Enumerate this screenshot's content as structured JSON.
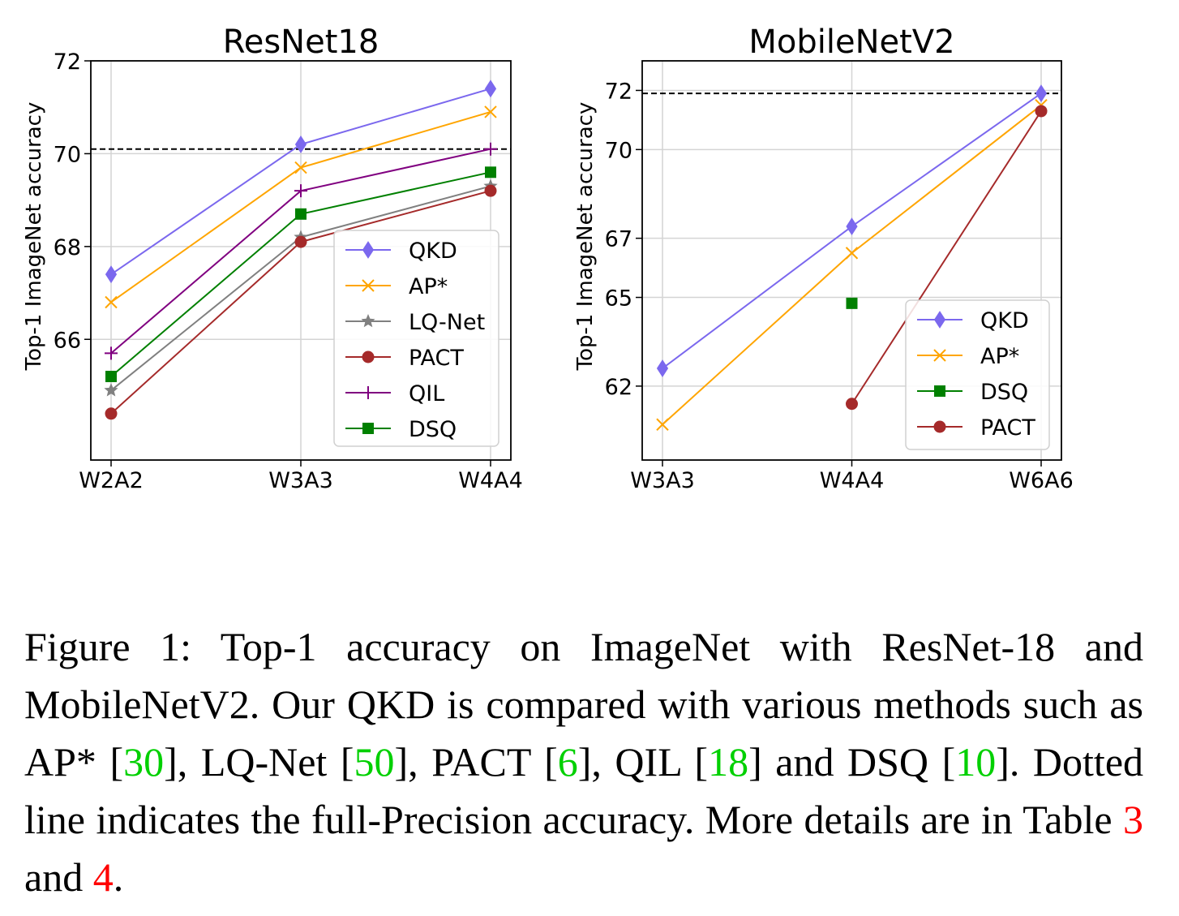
{
  "chart_data": [
    {
      "type": "line",
      "title": "ResNet18",
      "xlabel": "",
      "ylabel": "Top-1 ImageNet accuracy",
      "categories": [
        "W2A2",
        "W3A3",
        "W4A4"
      ],
      "yticks": [
        66,
        68,
        70,
        72
      ],
      "ylim": [
        63.4,
        72
      ],
      "grid": true,
      "legend_position": "lower-right",
      "full_precision_line": 70.1,
      "series": [
        {
          "name": "QKD",
          "color": "#7b68ee",
          "marker": "diamond",
          "values": [
            67.4,
            70.2,
            71.4
          ]
        },
        {
          "name": "AP*",
          "color": "#ffa500",
          "marker": "x",
          "values": [
            66.8,
            69.7,
            70.9
          ]
        },
        {
          "name": "LQ-Net",
          "color": "#808080",
          "marker": "star",
          "values": [
            64.9,
            68.2,
            69.3
          ]
        },
        {
          "name": "PACT",
          "color": "#a52a2a",
          "marker": "circle",
          "values": [
            64.4,
            68.1,
            69.2
          ]
        },
        {
          "name": "QIL",
          "color": "#800080",
          "marker": "plus",
          "values": [
            65.7,
            69.2,
            70.1
          ]
        },
        {
          "name": "DSQ",
          "color": "#008000",
          "marker": "square",
          "values": [
            65.2,
            68.7,
            69.6
          ]
        }
      ]
    },
    {
      "type": "line",
      "title": "MobileNetV2",
      "xlabel": "",
      "ylabel": "Top-1 ImageNet accuracy",
      "categories": [
        "W3A3",
        "W4A4",
        "W6A6"
      ],
      "yticks": [
        62,
        65,
        67,
        70,
        72
      ],
      "ylim": [
        59.5,
        73
      ],
      "grid": true,
      "legend_position": "lower-right",
      "full_precision_line": 71.9,
      "series": [
        {
          "name": "QKD",
          "color": "#7b68ee",
          "marker": "diamond",
          "values": [
            62.6,
            67.4,
            71.9
          ]
        },
        {
          "name": "AP*",
          "color": "#ffa500",
          "marker": "x",
          "values": [
            60.7,
            66.5,
            71.5
          ]
        },
        {
          "name": "DSQ",
          "color": "#008000",
          "marker": "square",
          "values": [
            null,
            64.8,
            null
          ]
        },
        {
          "name": "PACT",
          "color": "#a52a2a",
          "marker": "circle",
          "values": [
            null,
            61.4,
            71.3
          ]
        }
      ]
    }
  ],
  "caption": {
    "t1": "Figure 1: Top-1 accuracy on ImageNet with ResNet-18 and MobileNetV2. Our QKD is compared with various methods such as AP* [",
    "r1": "30",
    "t2": "], LQ-Net [",
    "r2": "50",
    "t3": "], PACT [",
    "r3": "6",
    "t4": "], QIL [",
    "r4": "18",
    "t5": "] and DSQ [",
    "r5": "10",
    "t6": "]. Dotted line indicates the full-Precision accuracy. More details are in Table ",
    "r6": "3",
    "t7": " and ",
    "r7": "4",
    "t8": "."
  }
}
